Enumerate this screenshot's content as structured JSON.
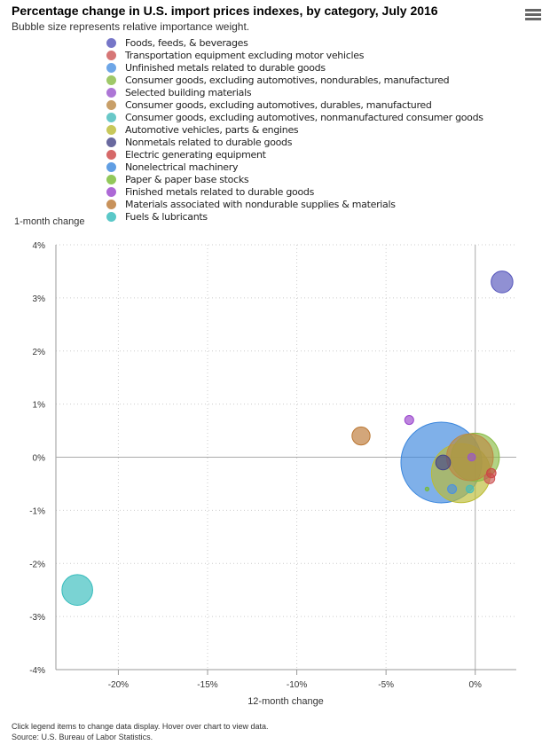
{
  "title": "Percentage change in U.S. import prices indexes, by category, July 2016",
  "subtitle": "Bubble size represents relative importance weight.",
  "menu_icon": "hamburger-menu-icon",
  "footer": {
    "line1": "Click legend items to change data display. Hover over chart to view data.",
    "line2": "Source: U.S. Bureau of Labor Statistics."
  },
  "chart_data": {
    "type": "bubble",
    "title": "Percentage change in U.S. import prices indexes, by category, July 2016",
    "xlabel": "12-month change",
    "ylabel": "1-month change",
    "xlim": [
      -23.5,
      2.3
    ],
    "ylim": [
      -4,
      4
    ],
    "xticks": [
      {
        "v": -20,
        "label": "-20%"
      },
      {
        "v": -15,
        "label": "-15%"
      },
      {
        "v": -10,
        "label": "-10%"
      },
      {
        "v": -5,
        "label": "-5%"
      },
      {
        "v": 0,
        "label": "0%"
      }
    ],
    "yticks": [
      {
        "v": 4,
        "label": "4%"
      },
      {
        "v": 3,
        "label": "3%"
      },
      {
        "v": 2,
        "label": "2%"
      },
      {
        "v": 1,
        "label": "1%"
      },
      {
        "v": 0,
        "label": "0%"
      },
      {
        "v": -1,
        "label": "-1%"
      },
      {
        "v": -2,
        "label": "-2%"
      },
      {
        "v": -3,
        "label": "-3%"
      },
      {
        "v": -4,
        "label": "-4%"
      }
    ],
    "grid": "dotted",
    "legend": "top",
    "series": [
      {
        "name": "Foods, feeds, & beverages",
        "color": "#5555bb",
        "x": 1.5,
        "y": 3.3,
        "weight": 6.5
      },
      {
        "name": "Transportation equipment excluding motor vehicles",
        "color": "#cc5555",
        "x": 0.8,
        "y": -0.4,
        "weight": 1.5
      },
      {
        "name": "Unfinished metals related to durable goods",
        "color": "#4a90e2",
        "x": -1.3,
        "y": -0.6,
        "weight": 1.1
      },
      {
        "name": "Consumer goods, excluding automotives, nondurables, manufactured",
        "color": "#88bb44",
        "x": 0.0,
        "y": 0.0,
        "weight": 32
      },
      {
        "name": "Selected building materials",
        "color": "#9955cc",
        "x": -0.2,
        "y": 0.0,
        "weight": 0.8
      },
      {
        "name": "Consumer goods, excluding automotives, durables, manufactured",
        "color": "#bb8844",
        "x": -0.3,
        "y": 0.0,
        "weight": 30
      },
      {
        "name": "Consumer goods, excluding automotives, nonmanufactured consumer goods",
        "color": "#44bbbb",
        "x": -0.3,
        "y": -0.6,
        "weight": 0.8
      },
      {
        "name": "Automotive vehicles, parts & engines",
        "color": "#bbbb33",
        "x": -0.8,
        "y": -0.3,
        "weight": 48
      },
      {
        "name": "Nonmetals related to durable goods",
        "color": "#444488",
        "x": -1.8,
        "y": -0.1,
        "weight": 3
      },
      {
        "name": "Electric generating equipment",
        "color": "#cc4444",
        "x": 0.9,
        "y": -0.3,
        "weight": 1.2
      },
      {
        "name": "Nonelectrical machinery",
        "color": "#3a86dd",
        "x": -1.9,
        "y": -0.1,
        "weight": 90
      },
      {
        "name": "Paper & paper base stocks",
        "color": "#77bb33",
        "x": -2.7,
        "y": -0.6,
        "weight": 0.2
      },
      {
        "name": "Finished metals related to durable goods",
        "color": "#9944cc",
        "x": -3.7,
        "y": 0.7,
        "weight": 1.1
      },
      {
        "name": "Materials associated with nondurable supplies & materials",
        "color": "#bb7733",
        "x": -6.4,
        "y": 0.4,
        "weight": 4.5
      },
      {
        "name": "Fuels & lubricants",
        "color": "#33bbbb",
        "x": -22.3,
        "y": -2.5,
        "weight": 13
      }
    ]
  }
}
